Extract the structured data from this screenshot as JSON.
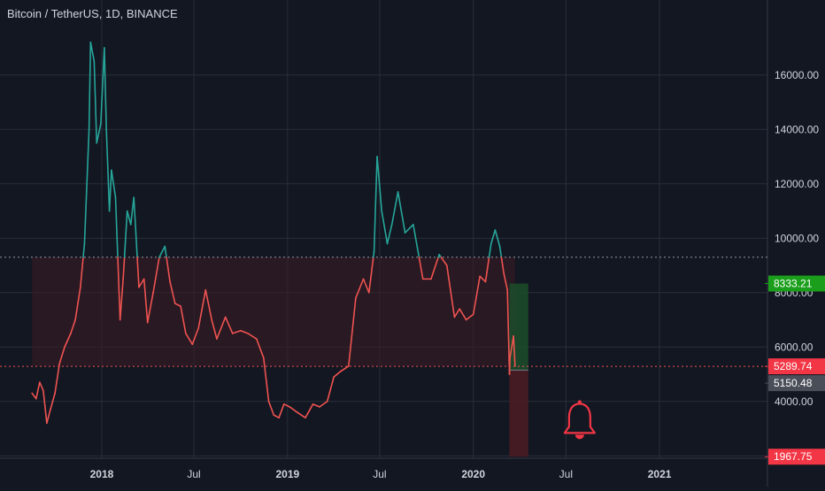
{
  "header": {
    "symbol_title": "Bitcoin / TetherUS, 1D, BINANCE"
  },
  "colors": {
    "background": "#131722",
    "grid": "#2a2e39",
    "axis_text": "#d1d4dc",
    "up": "#26a69a",
    "down": "#ef5350",
    "zone_fill": "#3a1c25",
    "target_zone": "#1d4a2a",
    "stop_zone": "#4a1c22",
    "badge_green": "#1b9e1b",
    "badge_red": "#f23645",
    "badge_gray": "#4a4e59",
    "alert_bell": "#f23645"
  },
  "chart_data": {
    "type": "line",
    "title": "Bitcoin / TetherUS, 1D, BINANCE",
    "xlabel": "",
    "ylabel": "",
    "x_tick_labels": [
      "2018",
      "Jul",
      "2019",
      "Jul",
      "2020",
      "Jul",
      "2021"
    ],
    "y_tick_labels": [
      "4000.00",
      "6000.00",
      "8000.00",
      "10000.00",
      "12000.00",
      "14000.00",
      "16000.00"
    ],
    "y_ticks": [
      4000,
      6000,
      8000,
      10000,
      12000,
      14000,
      16000
    ],
    "ylim": [
      1000,
      17600
    ],
    "xlim": [
      "2017-06-15",
      "2021-08-01"
    ],
    "grid": true,
    "series_color_rule": "teal above 9300, red below 9300",
    "reference_level": 9300,
    "series": [
      {
        "x": [
          "2017-08-17",
          "2017-08-25",
          "2017-09-01",
          "2017-09-08",
          "2017-09-15",
          "2017-09-22",
          "2017-10-01",
          "2017-10-10",
          "2017-10-20",
          "2017-11-01",
          "2017-11-10",
          "2017-11-20",
          "2017-11-28",
          "2017-12-07",
          "2017-12-10",
          "2017-12-17",
          "2017-12-22",
          "2017-12-30",
          "2018-01-06",
          "2018-01-10",
          "2018-01-16",
          "2018-01-20",
          "2018-01-28",
          "2018-02-02",
          "2018-02-06",
          "2018-02-12",
          "2018-02-20",
          "2018-02-27",
          "2018-03-05",
          "2018-03-15",
          "2018-03-25",
          "2018-04-01",
          "2018-04-12",
          "2018-04-24",
          "2018-05-05",
          "2018-05-15",
          "2018-05-25",
          "2018-06-05",
          "2018-06-15",
          "2018-06-28",
          "2018-07-10",
          "2018-07-24",
          "2018-08-05",
          "2018-08-15",
          "2018-09-01",
          "2018-09-15",
          "2018-10-01",
          "2018-10-15",
          "2018-11-01",
          "2018-11-15",
          "2018-11-25",
          "2018-12-05",
          "2018-12-15",
          "2018-12-25",
          "2019-01-05",
          "2019-01-20",
          "2019-02-05",
          "2019-02-20",
          "2019-03-05",
          "2019-03-20",
          "2019-04-02",
          "2019-04-15",
          "2019-05-01",
          "2019-05-15",
          "2019-05-30",
          "2019-06-10",
          "2019-06-20",
          "2019-06-26",
          "2019-07-05",
          "2019-07-16",
          "2019-07-25",
          "2019-08-06",
          "2019-08-20",
          "2019-09-05",
          "2019-09-24",
          "2019-10-10",
          "2019-10-26",
          "2019-11-10",
          "2019-11-25",
          "2019-12-05",
          "2019-12-18",
          "2020-01-01",
          "2020-01-14",
          "2020-01-25",
          "2020-02-05",
          "2020-02-13",
          "2020-02-22",
          "2020-03-01",
          "2020-03-08",
          "2020-03-12",
          "2020-03-13",
          "2020-03-20",
          "2020-03-23"
        ],
        "y": [
          4300,
          4100,
          4700,
          4400,
          3200,
          3700,
          4300,
          5400,
          6000,
          6500,
          7000,
          8200,
          9800,
          14000,
          17200,
          16500,
          13500,
          14200,
          17000,
          14000,
          11000,
          12500,
          11500,
          9000,
          7000,
          8500,
          11000,
          10500,
          11500,
          8200,
          8500,
          6900,
          8000,
          9300,
          9700,
          8400,
          7600,
          7500,
          6500,
          6100,
          6700,
          8100,
          7000,
          6300,
          7100,
          6500,
          6600,
          6500,
          6300,
          5600,
          4000,
          3500,
          3400,
          3900,
          3800,
          3600,
          3400,
          3900,
          3800,
          4000,
          4900,
          5100,
          5300,
          7800,
          8500,
          8000,
          9500,
          13000,
          11000,
          9800,
          10500,
          11700,
          10200,
          10500,
          8500,
          8500,
          9400,
          9000,
          7100,
          7400,
          7000,
          7200,
          8600,
          8400,
          9800,
          10300,
          9700,
          8700,
          8100,
          5000,
          5600,
          6400,
          5300
        ]
      }
    ],
    "last_price": 5289.74,
    "price_labels": [
      "8333.21",
      "5289.74",
      "5150.48",
      "1967.75"
    ],
    "price_label_values": [
      8333.21,
      5289.74,
      5150.48,
      1967.75
    ],
    "dotted_levels": [
      9300,
      5289.74
    ],
    "shaded_zone": {
      "x_start": "2017-08-17",
      "x_end": "2020-03-23",
      "y_low": 5289.74,
      "y_high": 9300
    },
    "position_tool": {
      "x_start": "2020-03-12",
      "x_end": "2020-04-18",
      "entry": 5150.48,
      "target": 8333.21,
      "stop": 1967.75
    },
    "alert_icon": {
      "name": "bell-icon",
      "x": "2020-07-28",
      "y": 3200
    }
  }
}
